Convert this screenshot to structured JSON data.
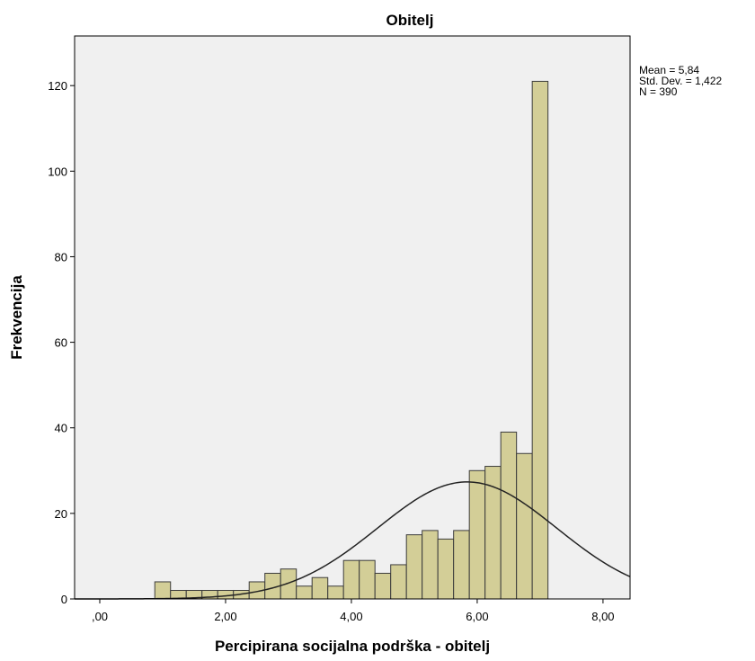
{
  "chart_data": {
    "type": "histogram",
    "title": "Obitelj",
    "x_label": "Percipirana socijalna podrška - obitelj",
    "y_label": "Frekvencija",
    "bins": [
      0.875,
      1.125,
      1.375,
      1.625,
      1.875,
      2.125,
      2.375,
      2.625,
      2.875,
      3.125,
      3.375,
      3.625,
      3.875,
      4.125,
      4.375,
      4.625,
      4.875,
      5.125,
      5.375,
      5.625,
      5.875,
      6.125,
      6.375,
      6.625,
      6.875,
      7.125
    ],
    "counts": [
      4,
      2,
      2,
      2,
      2,
      2,
      4,
      6,
      7,
      3,
      5,
      3,
      9,
      9,
      6,
      8,
      15,
      16,
      14,
      16,
      30,
      31,
      39,
      34,
      121
    ],
    "color": "#d3ce97",
    "edge_color": "#3c3c3c",
    "background": "#f0f0f0",
    "xlim": [
      -0.4,
      8.43
    ],
    "ylim": [
      0,
      131.6
    ],
    "xticks": [
      {
        "value": 0,
        "label": ",00"
      },
      {
        "value": 2,
        "label": "2,00"
      },
      {
        "value": 4,
        "label": "4,00"
      },
      {
        "value": 6,
        "label": "6,00"
      },
      {
        "value": 8,
        "label": "8,00"
      }
    ],
    "yticks": [
      0,
      20,
      40,
      60,
      80,
      100,
      120
    ],
    "grid": false,
    "normal_curve": {
      "mean": {
        "value": 5.84,
        "label": "Mean = 5,84"
      },
      "sd": {
        "value": 1.422,
        "label": "Std. Dev. = 1,422"
      },
      "n": {
        "value": 390,
        "label": "N = 390"
      }
    }
  }
}
